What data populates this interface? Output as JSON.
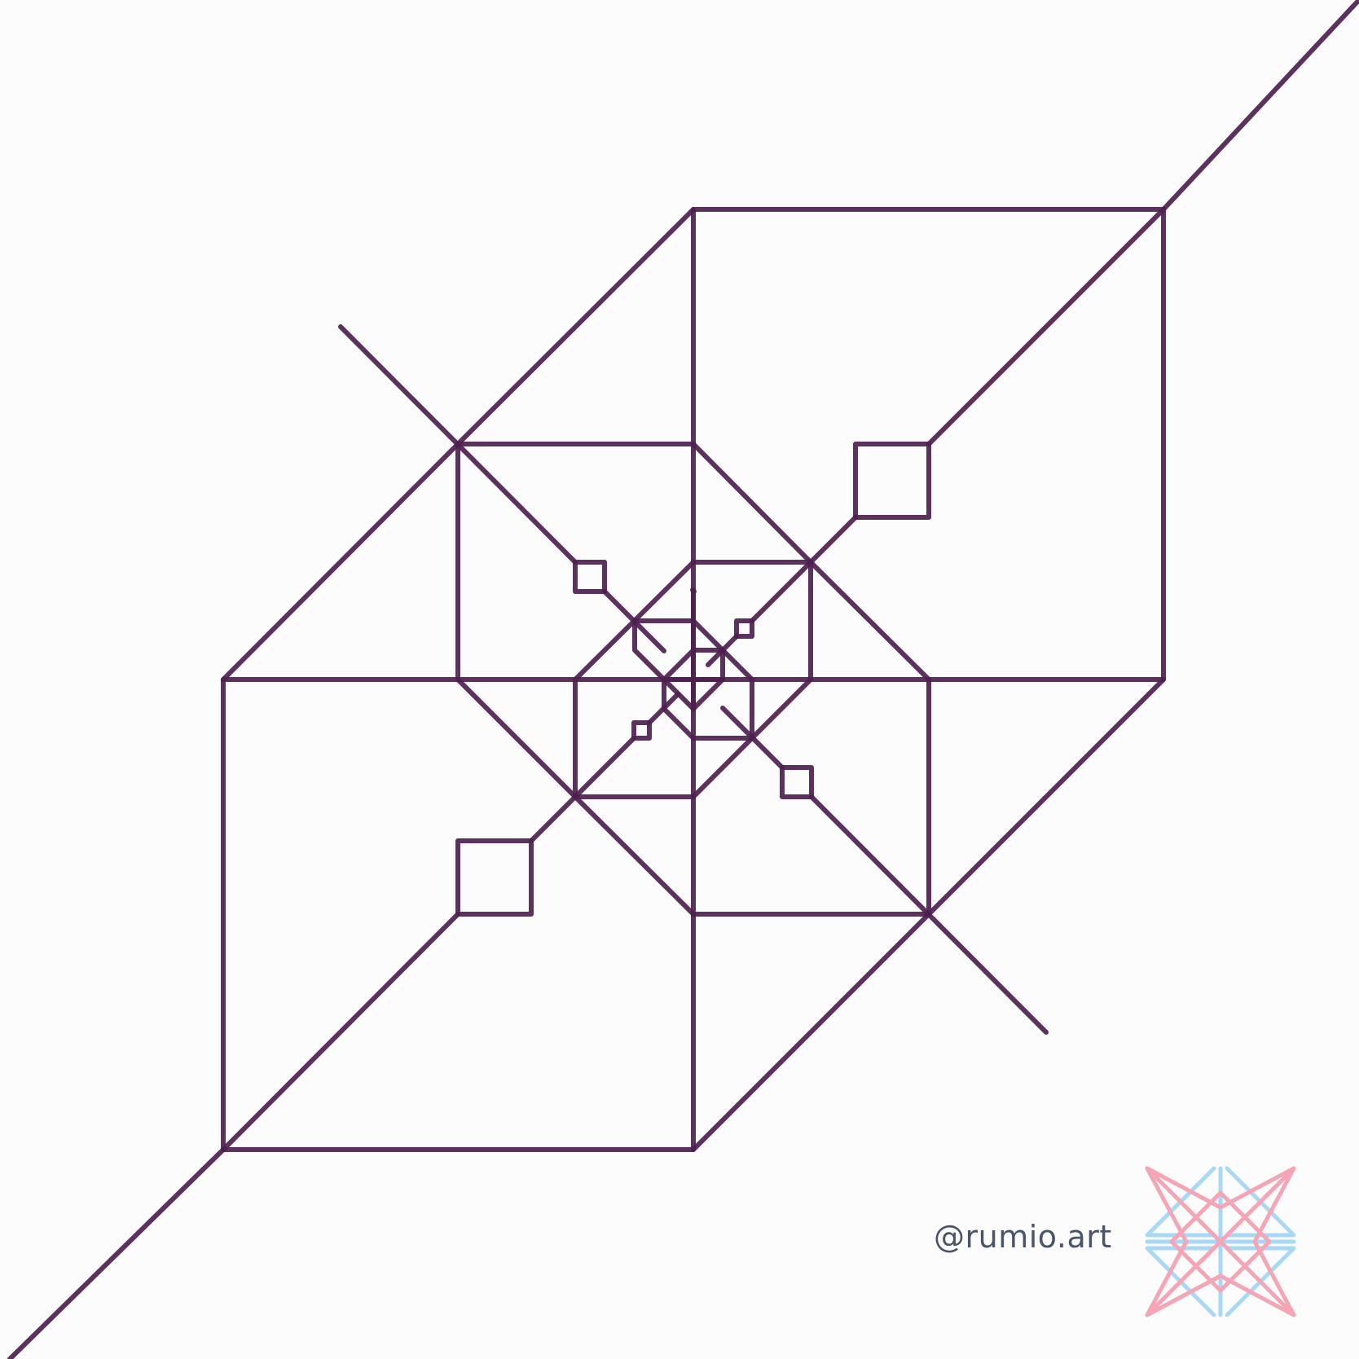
{
  "artwork": {
    "stroke_color": "#4d1f4f"
  },
  "signature": {
    "handle": "@rumio.art",
    "color": "#4a5568"
  },
  "logo": {
    "primary_color": "#f4a6b6",
    "secondary_color": "#a9d8f6"
  }
}
